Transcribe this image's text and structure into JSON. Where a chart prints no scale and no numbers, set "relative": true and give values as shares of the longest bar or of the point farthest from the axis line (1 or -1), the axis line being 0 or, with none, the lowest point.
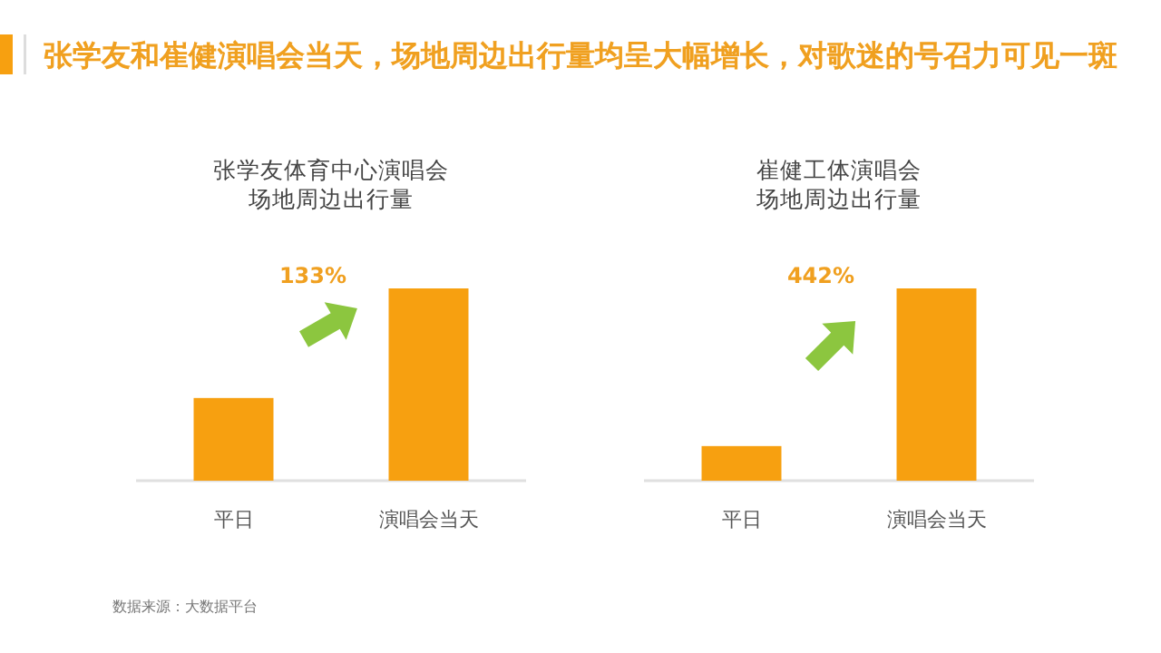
{
  "chart_data": [
    {
      "type": "bar",
      "title": "张学友和崔健演唱会当天，场地周边出行量均呈大幅增长，对歌迷的号召力可见一斑",
      "subtitle": "张学友体育中心演唱会场地周边出行量",
      "relative": true,
      "categories": [
        "平日",
        "演唱会当天"
      ],
      "values": [
        0.43,
        1
      ],
      "color": "#f7a010",
      "annotations": [
        "133%",
        "数据来源：大数据平台"
      ]
    },
    {
      "type": "bar",
      "title": "崔健工体演唱会场地周边出行量",
      "relative": true,
      "categories": [
        "平日",
        "演唱会当天"
      ],
      "values": [
        0.18,
        1
      ],
      "color": "#f7a010",
      "annotations": [
        "442%"
      ]
    }
  ]
}
